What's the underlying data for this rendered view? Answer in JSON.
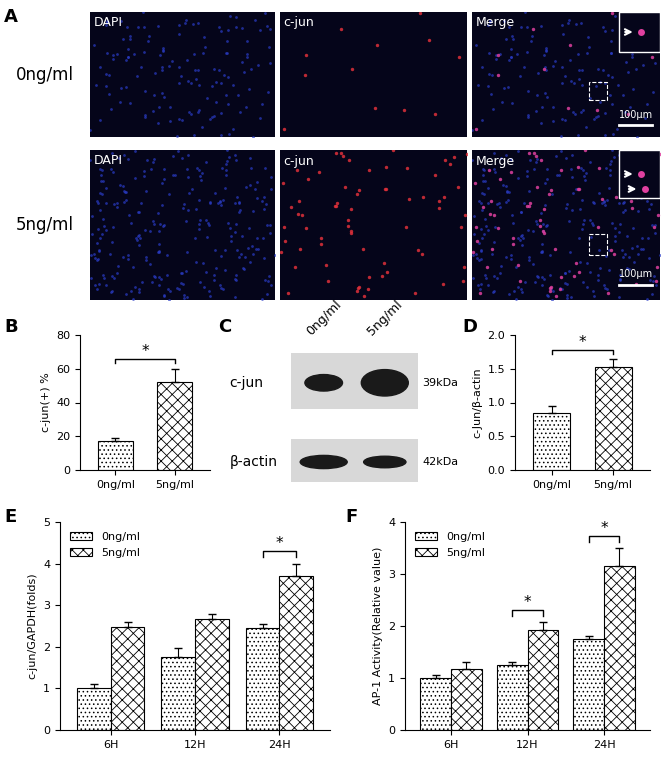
{
  "panels": [
    "A",
    "B",
    "C",
    "D",
    "E",
    "F"
  ],
  "micrographs": {
    "rows": [
      "0ng/ml",
      "5ng/ml"
    ],
    "columns": [
      "DAPI",
      "c-jun",
      "Merge"
    ],
    "scale_bar": "100μm"
  },
  "blot": {
    "lanes": [
      "0ng/ml",
      "5ng/ml"
    ],
    "bands": [
      {
        "name": "c-jun",
        "size": "39kDa"
      },
      {
        "name": "β-actin",
        "size": "42kDa"
      }
    ]
  },
  "chart_data": [
    {
      "type": "bar",
      "categories": [
        "0ng/ml",
        "5ng/ml"
      ],
      "values": [
        17,
        52
      ],
      "errors": [
        2,
        8
      ],
      "ylabel": "c-jun(+) %",
      "ylim": [
        0,
        80
      ],
      "yticks": [
        0,
        20,
        40,
        60,
        80
      ],
      "color": "white",
      "annotations": [
        {
          "text": "*",
          "between": [
            "0ng/ml",
            "5ng/ml"
          ]
        }
      ]
    },
    {
      "type": "bar",
      "categories": [
        "0ng/ml",
        "5ng/ml"
      ],
      "values": [
        0.85,
        1.52
      ],
      "errors": [
        0.1,
        0.12
      ],
      "ylabel": "c-Jun/β-actin",
      "ylim": [
        0,
        2
      ],
      "yticks": [
        {
          "value": 0,
          "label": "0.0"
        },
        {
          "value": 0.5,
          "label": "0.5"
        },
        {
          "value": 1,
          "label": "1.0"
        },
        {
          "value": 1.5,
          "label": "1.5"
        },
        {
          "value": 2,
          "label": "2.0"
        }
      ],
      "color": "white",
      "annotations": [
        {
          "text": "*",
          "between": [
            "0ng/ml",
            "5ng/ml"
          ]
        }
      ]
    },
    {
      "type": "bar",
      "categories": [
        "6H",
        "12H",
        "24H"
      ],
      "series": [
        {
          "name": "0ng/ml",
          "color": "white",
          "values": [
            1.0,
            1.75,
            2.45
          ],
          "errors": [
            0.1,
            0.22,
            0.1
          ]
        },
        {
          "name": "5ng/ml",
          "color": "white",
          "values": [
            2.48,
            2.68,
            3.7
          ],
          "errors": [
            0.12,
            0.12,
            0.3
          ]
        }
      ],
      "ylabel": "c-jun/GAPDH(folds)",
      "ylim": [
        0,
        5
      ],
      "yticks": [
        0,
        1,
        2,
        3,
        4,
        5
      ],
      "legend": "upper left",
      "annotations": [
        {
          "text": "*",
          "category": "24H"
        }
      ]
    },
    {
      "type": "bar",
      "categories": [
        "6H",
        "12H",
        "24H"
      ],
      "series": [
        {
          "name": "0ng/ml",
          "color": "white",
          "values": [
            1.0,
            1.25,
            1.75
          ],
          "errors": [
            0.05,
            0.05,
            0.05
          ]
        },
        {
          "name": "5ng/ml",
          "color": "white",
          "values": [
            1.18,
            1.92,
            3.15
          ],
          "errors": [
            0.12,
            0.15,
            0.35
          ]
        }
      ],
      "ylabel": "AP-1 Activity(Relative value)",
      "ylim": [
        0,
        4
      ],
      "yticks": [
        0,
        1,
        2,
        3,
        4
      ],
      "legend": "upper left",
      "annotations": [
        {
          "text": "*",
          "category": "12H"
        },
        {
          "text": "*",
          "category": "24H"
        }
      ]
    }
  ]
}
